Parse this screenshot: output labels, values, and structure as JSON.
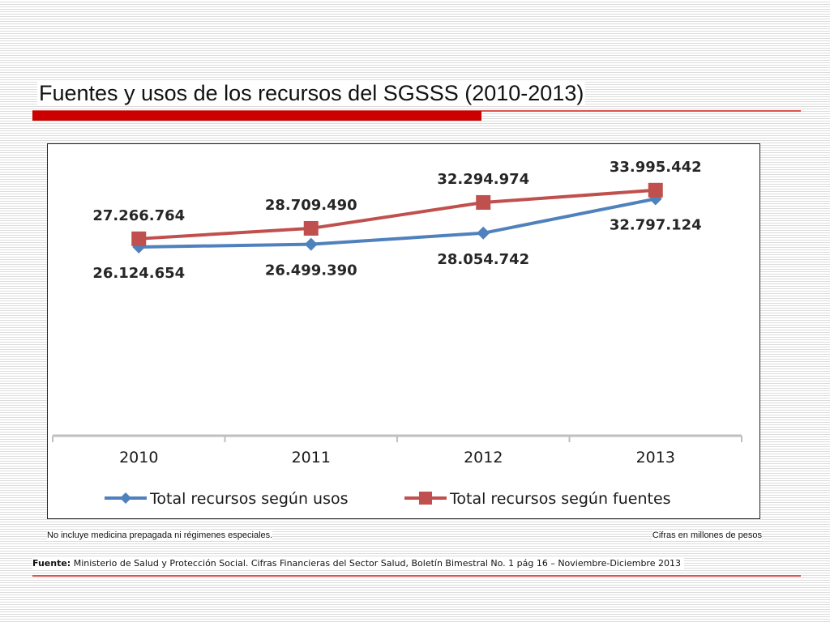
{
  "slide": {
    "title": "Fuentes y usos de los recursos del SGSSS (2010-2013)",
    "note_left": "No incluye medicina prepagada ni régimenes especiales.",
    "note_right": "Cifras en millones de pesos",
    "source_label": "Fuente:",
    "source_text": "Ministerio de Salud y Protección Social. Cifras Financieras del Sector Salud, Boletín Bimestral No. 1 pág 16 – Noviembre-Diciembre 2013",
    "accent_color": "#cc0000"
  },
  "chart_data": {
    "type": "line",
    "categories": [
      "2010",
      "2011",
      "2012",
      "2013"
    ],
    "series": [
      {
        "name": "Total recursos según usos",
        "values": [
          26124654,
          26499390,
          28054742,
          32797124
        ],
        "labels": [
          "26.124.654",
          "26.499.390",
          "28.054.742",
          "32.797.124"
        ],
        "color": "#4f81bd",
        "marker": "diamond",
        "label_position": "below"
      },
      {
        "name": "Total recursos según fuentes",
        "values": [
          27266764,
          28709490,
          32294974,
          33995442
        ],
        "labels": [
          "27.266.764",
          "28.709.490",
          "32.294.974",
          "33.995.442"
        ],
        "color": "#c0504d",
        "marker": "square",
        "label_position": "above"
      }
    ],
    "ylim": [
      0,
      37000000
    ],
    "grid": false,
    "legend_position": "bottom"
  }
}
